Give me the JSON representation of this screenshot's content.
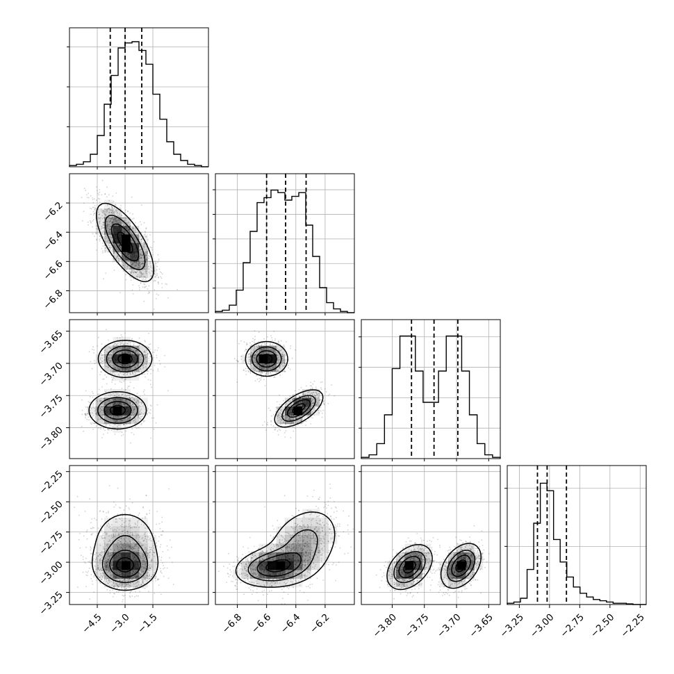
{
  "chart_data": {
    "type": "corner",
    "parameters": [
      {
        "range": [
          -6.0,
          1.5
        ],
        "ticks": [
          -4.5,
          -3.0,
          -1.5
        ],
        "tick_labels": [
          "−4.5",
          "−3.0",
          "−1.5"
        ],
        "quantiles": [
          -3.8,
          -3.0,
          -2.1
        ],
        "hist_ticks": 3
      },
      {
        "range": [
          -6.95,
          -6.0
        ],
        "ticks": [
          -6.8,
          -6.6,
          -6.4,
          -6.2
        ],
        "tick_labels": [
          "−6.8",
          "−6.6",
          "−6.4",
          "−6.2"
        ],
        "quantiles": [
          -6.6,
          -6.47,
          -6.33
        ],
        "hist_ticks": 5
      },
      {
        "range": [
          -3.848,
          -3.632
        ],
        "ticks": [
          -3.8,
          -3.75,
          -3.7,
          -3.65
        ],
        "tick_labels": [
          "−3.80",
          "−3.75",
          "−3.70",
          "−3.65"
        ],
        "quantiles": [
          -3.77,
          -3.735,
          -3.698
        ],
        "hist_ticks": 4
      },
      {
        "range": [
          -3.35,
          -2.2
        ],
        "ticks": [
          -3.25,
          -3.0,
          -2.75,
          -2.5,
          -2.25
        ],
        "tick_labels": [
          "−3.25",
          "−3.00",
          "−2.75",
          "−2.50",
          "−2.25"
        ],
        "quantiles": [
          -3.1,
          -3.02,
          -2.86
        ],
        "hist_ticks": 2
      }
    ],
    "histograms": [
      [
        0.01,
        0.02,
        0.04,
        0.1,
        0.25,
        0.5,
        0.73,
        0.95,
        0.99,
        1.0,
        0.93,
        0.82,
        0.58,
        0.38,
        0.2,
        0.1,
        0.05,
        0.02,
        0.01,
        0
      ],
      [
        0.01,
        0.02,
        0.06,
        0.18,
        0.4,
        0.65,
        0.88,
        0.92,
        0.98,
        0.96,
        0.9,
        0.93,
        0.96,
        0.7,
        0.45,
        0.2,
        0.08,
        0.03,
        0.01,
        0
      ],
      [
        0.01,
        0.03,
        0.12,
        0.35,
        0.72,
        0.98,
        0.98,
        0.7,
        0.45,
        0.45,
        0.7,
        0.98,
        0.98,
        0.7,
        0.35,
        0.12,
        0.03,
        0.01
      ],
      [
        0.01,
        0.02,
        0.05,
        0.28,
        0.65,
        0.97,
        0.91,
        0.52,
        0.34,
        0.22,
        0.14,
        0.09,
        0.06,
        0.04,
        0.03,
        0.02,
        0.01,
        0.01,
        0.005,
        0,
        0
      ]
    ],
    "pairs": {
      "1-0": {
        "modes": [
          {
            "mu": [
              -3.0,
              -6.47
            ],
            "sd": [
              0.75,
              0.13
            ],
            "rho": -0.7,
            "w": 1
          }
        ]
      },
      "2-0": {
        "modes": [
          {
            "mu": [
              -3.0,
              -3.693
            ],
            "sd": [
              0.7,
              0.014
            ],
            "rho": 0,
            "w": 0.5
          },
          {
            "mu": [
              -3.4,
              -3.773
            ],
            "sd": [
              0.75,
              0.014
            ],
            "rho": 0,
            "w": 0.5
          }
        ]
      },
      "3-0": {
        "modes": [
          {
            "mu": [
              -3.0,
              -3.04
            ],
            "sd": [
              0.8,
              0.09
            ],
            "rho": 0,
            "w": 0.65
          },
          {
            "mu": [
              -3.0,
              -2.87
            ],
            "sd": [
              1.0,
              0.17
            ],
            "rho": 0,
            "w": 0.35
          }
        ]
      },
      "2-1": {
        "modes": [
          {
            "mu": [
              -6.6,
              -3.693
            ],
            "sd": [
              0.07,
              0.013
            ],
            "rho": 0,
            "w": 0.5
          },
          {
            "mu": [
              -6.38,
              -3.77
            ],
            "sd": [
              0.08,
              0.014
            ],
            "rho": 0.6,
            "w": 0.5
          }
        ]
      },
      "3-1": {
        "modes": [
          {
            "mu": [
              -6.55,
              -3.04
            ],
            "sd": [
              0.13,
              0.08
            ],
            "rho": 0.2,
            "w": 0.65
          },
          {
            "mu": [
              -6.35,
              -2.85
            ],
            "sd": [
              0.13,
              0.16
            ],
            "rho": 0.3,
            "w": 0.35
          }
        ]
      },
      "3-2": {
        "modes": [
          {
            "mu": [
              -3.773,
              -3.04
            ],
            "sd": [
              0.017,
              0.09
            ],
            "rho": 0.4,
            "w": 0.5
          },
          {
            "mu": [
              -3.693,
              -3.03
            ],
            "sd": [
              0.015,
              0.09
            ],
            "rho": 0.4,
            "w": 0.5
          }
        ]
      }
    },
    "grid": true,
    "line_color": "#000000",
    "grid_color": "#b0b0b0",
    "scatter_color": "#555555",
    "fill_color": "#000000"
  }
}
